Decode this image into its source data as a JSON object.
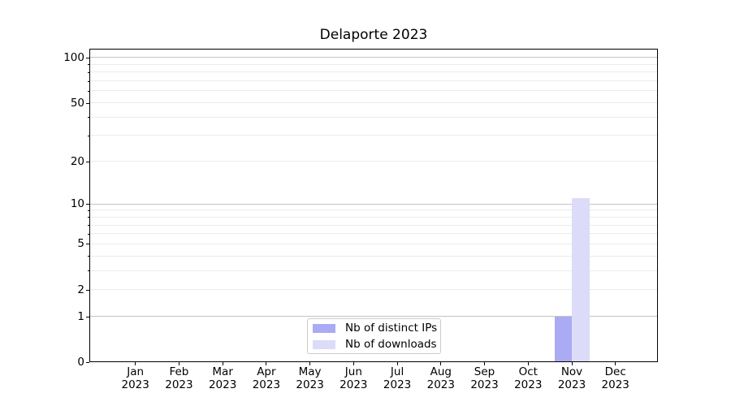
{
  "chart_data": {
    "type": "bar",
    "title": "Delaporte 2023",
    "categories": [
      "Jan 2023",
      "Feb 2023",
      "Mar 2023",
      "Apr 2023",
      "May 2023",
      "Jun 2023",
      "Jul 2023",
      "Aug 2023",
      "Sep 2023",
      "Oct 2023",
      "Nov 2023",
      "Dec 2023"
    ],
    "series": [
      {
        "name": "Nb of distinct IPs",
        "color": "#aaaaf5",
        "values": [
          0,
          0,
          0,
          0,
          0,
          0,
          0,
          0,
          0,
          0,
          1,
          0
        ]
      },
      {
        "name": "Nb of downloads",
        "color": "#dcdcf9",
        "values": [
          0,
          0,
          0,
          0,
          0,
          0,
          0,
          0,
          0,
          0,
          11,
          0
        ]
      }
    ],
    "xlabel": "",
    "ylabel": "",
    "y_scale": "log1p",
    "y_ticks_labeled": [
      0,
      1,
      2,
      5,
      10,
      20,
      50,
      100
    ],
    "y_major_gridlines": [
      1,
      10,
      100
    ],
    "y_minor_gridlines": [
      2,
      3,
      4,
      5,
      6,
      7,
      8,
      9,
      20,
      30,
      40,
      50,
      60,
      70,
      80,
      90
    ],
    "ylim": [
      0,
      113
    ],
    "grid": "both",
    "legend_position": "lower center",
    "colors": {
      "grid_major": "#c4c4c4",
      "grid_minor": "#ebebeb",
      "spine": "#000000",
      "text": "#000000",
      "background": "#ffffff"
    }
  }
}
